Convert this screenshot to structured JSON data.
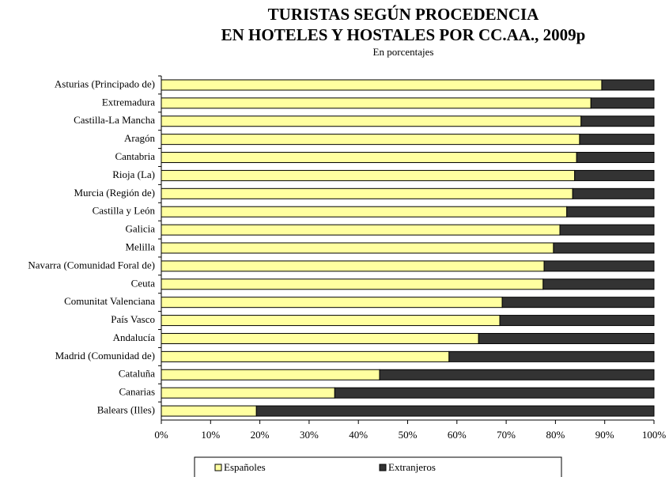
{
  "chart_data": {
    "type": "bar_stacked_horizontal",
    "title": [
      "TURISTAS SEGÚN PROCEDENCIA",
      "EN HOTELES Y HOSTALES POR CC.AA., 2009p"
    ],
    "subtitle": "En porcentajes",
    "categories": [
      "Asturias (Principado de)",
      "Extremadura",
      "Castilla-La Mancha",
      "Aragón",
      "Cantabria",
      "Rioja (La)",
      "Murcia (Región de)",
      "Castilla y León",
      "Galicia",
      "Melilla",
      "Navarra (Comunidad Foral de)",
      "Ceuta",
      "Comunitat Valenciana",
      "País Vasco",
      "Andalucía",
      "Madrid (Comunidad de)",
      "Cataluña",
      "Canarias",
      "Balears (Illes)"
    ],
    "series": [
      {
        "name": "Españoles",
        "color": "#ffffa0",
        "values": [
          89.4,
          87.2,
          85.2,
          84.9,
          84.3,
          83.9,
          83.5,
          82.3,
          80.9,
          79.6,
          77.7,
          77.5,
          69.2,
          68.7,
          64.4,
          58.4,
          44.3,
          35.2,
          19.3
        ]
      },
      {
        "name": "Extranjeros",
        "color": "#333333",
        "values": [
          10.6,
          12.8,
          14.8,
          15.1,
          15.7,
          16.1,
          16.5,
          17.7,
          19.1,
          20.4,
          22.3,
          22.5,
          30.8,
          31.3,
          35.6,
          41.6,
          55.7,
          64.8,
          80.7
        ]
      }
    ],
    "xlim": [
      0,
      100
    ],
    "xticks": [
      {
        "value": 0,
        "label": "0%"
      },
      {
        "value": 10,
        "label": "10%"
      },
      {
        "value": 20,
        "label": "20%"
      },
      {
        "value": 30,
        "label": "30%"
      },
      {
        "value": 40,
        "label": "40%"
      },
      {
        "value": 50,
        "label": "50%"
      },
      {
        "value": 60,
        "label": "60%"
      },
      {
        "value": 70,
        "label": "70%"
      },
      {
        "value": 80,
        "label": "80%"
      },
      {
        "value": 90,
        "label": "90%"
      },
      {
        "value": 100,
        "label": "100%"
      }
    ],
    "legend": "bottom"
  }
}
